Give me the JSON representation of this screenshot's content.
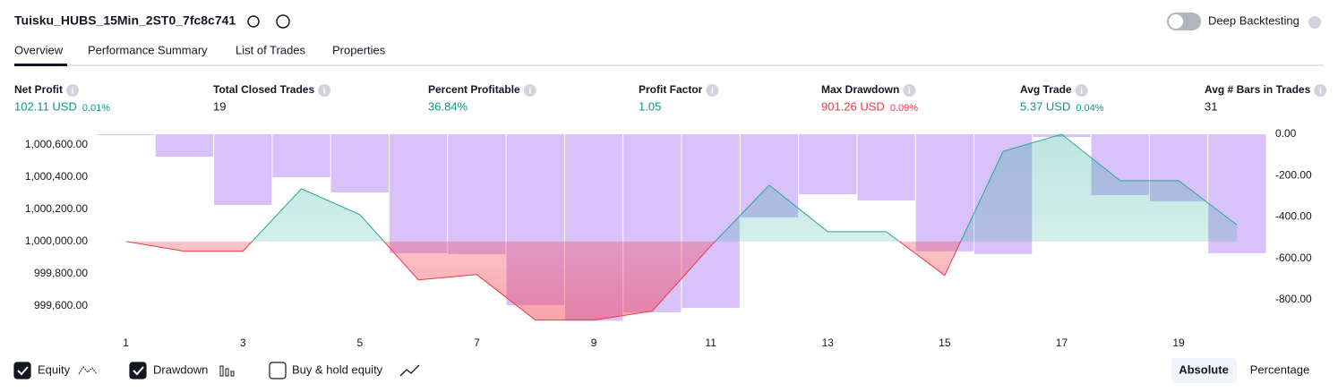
{
  "header": {
    "title": "Tuisku_HUBS_15Min_2ST0_7fc8c741",
    "deep_backtesting": "Deep Backtesting"
  },
  "tabs": [
    "Overview",
    "Performance Summary",
    "List of Trades",
    "Properties"
  ],
  "metrics": [
    {
      "label": "Net Profit",
      "value": "102.11 USD",
      "percent": "0.01%",
      "color": "#089981"
    },
    {
      "label": "Total Closed Trades",
      "value": "19",
      "color": "#131722"
    },
    {
      "label": "Percent Profitable",
      "value": "36.84%",
      "color": "#089981"
    },
    {
      "label": "Profit Factor",
      "value": "1.05",
      "color": "#089981"
    },
    {
      "label": "Max Drawdown",
      "value": "901.26 USD",
      "percent": "0.09%",
      "color": "#f23645"
    },
    {
      "label": "Avg Trade",
      "value": "5.37 USD",
      "percent": "0.04%",
      "color": "#089981"
    },
    {
      "label": "Avg # Bars in Trades",
      "value": "31",
      "color": "#131722"
    }
  ],
  "chart_data": {
    "type": "combo",
    "categories": [
      1,
      null,
      3,
      null,
      5,
      null,
      7,
      null,
      9,
      null,
      11,
      null,
      13,
      null,
      15,
      null,
      17,
      null,
      19,
      null
    ],
    "series": [
      {
        "name": "Equity",
        "color": "#22ab94",
        "negative_color": "#f23645",
        "baseline": 1000000,
        "values": [
          1000000,
          999939,
          999939,
          1000328,
          1000167,
          999761,
          999794,
          999511,
          999511,
          999567,
          999972,
          1000350,
          1000061,
          1000061,
          999789,
          1000561,
          1000667,
          1000378,
          1000378,
          1000102.11
        ]
      },
      {
        "name": "Drawdown",
        "color": "#c9a6f7",
        "axis": "y2",
        "values": [
          0,
          -108,
          -342,
          -208,
          -281,
          -575,
          -579,
          -826,
          -901.26,
          -861,
          -839,
          -402,
          -290,
          -320,
          -566,
          -579,
          -13,
          -294,
          -324,
          -575
        ]
      }
    ],
    "ylim": [
      999470,
      1000667
    ],
    "yticks": [
      {
        "value": 999600,
        "label": "999,600.00"
      },
      {
        "value": 999800,
        "label": "999,800.00"
      },
      {
        "value": 1000000,
        "label": "1,000,000.00"
      },
      {
        "value": 1000200,
        "label": "1,000,200.00"
      },
      {
        "value": 1000400,
        "label": "1,000,400.00"
      },
      {
        "value": 1000600,
        "label": "1,000,600.00"
      }
    ],
    "y2lim": [
      -930,
      0
    ],
    "y2ticks": [
      {
        "value": -800,
        "label": "-800.00"
      },
      {
        "value": -600,
        "label": "-600.00"
      },
      {
        "value": -400,
        "label": "-400.00"
      },
      {
        "value": -200,
        "label": "-200.00"
      },
      {
        "value": 0,
        "label": "0.00"
      }
    ]
  },
  "controls": {
    "buy_hold": "Buy & hold equity",
    "modes": [
      "Absolute",
      "Percentage"
    ]
  }
}
